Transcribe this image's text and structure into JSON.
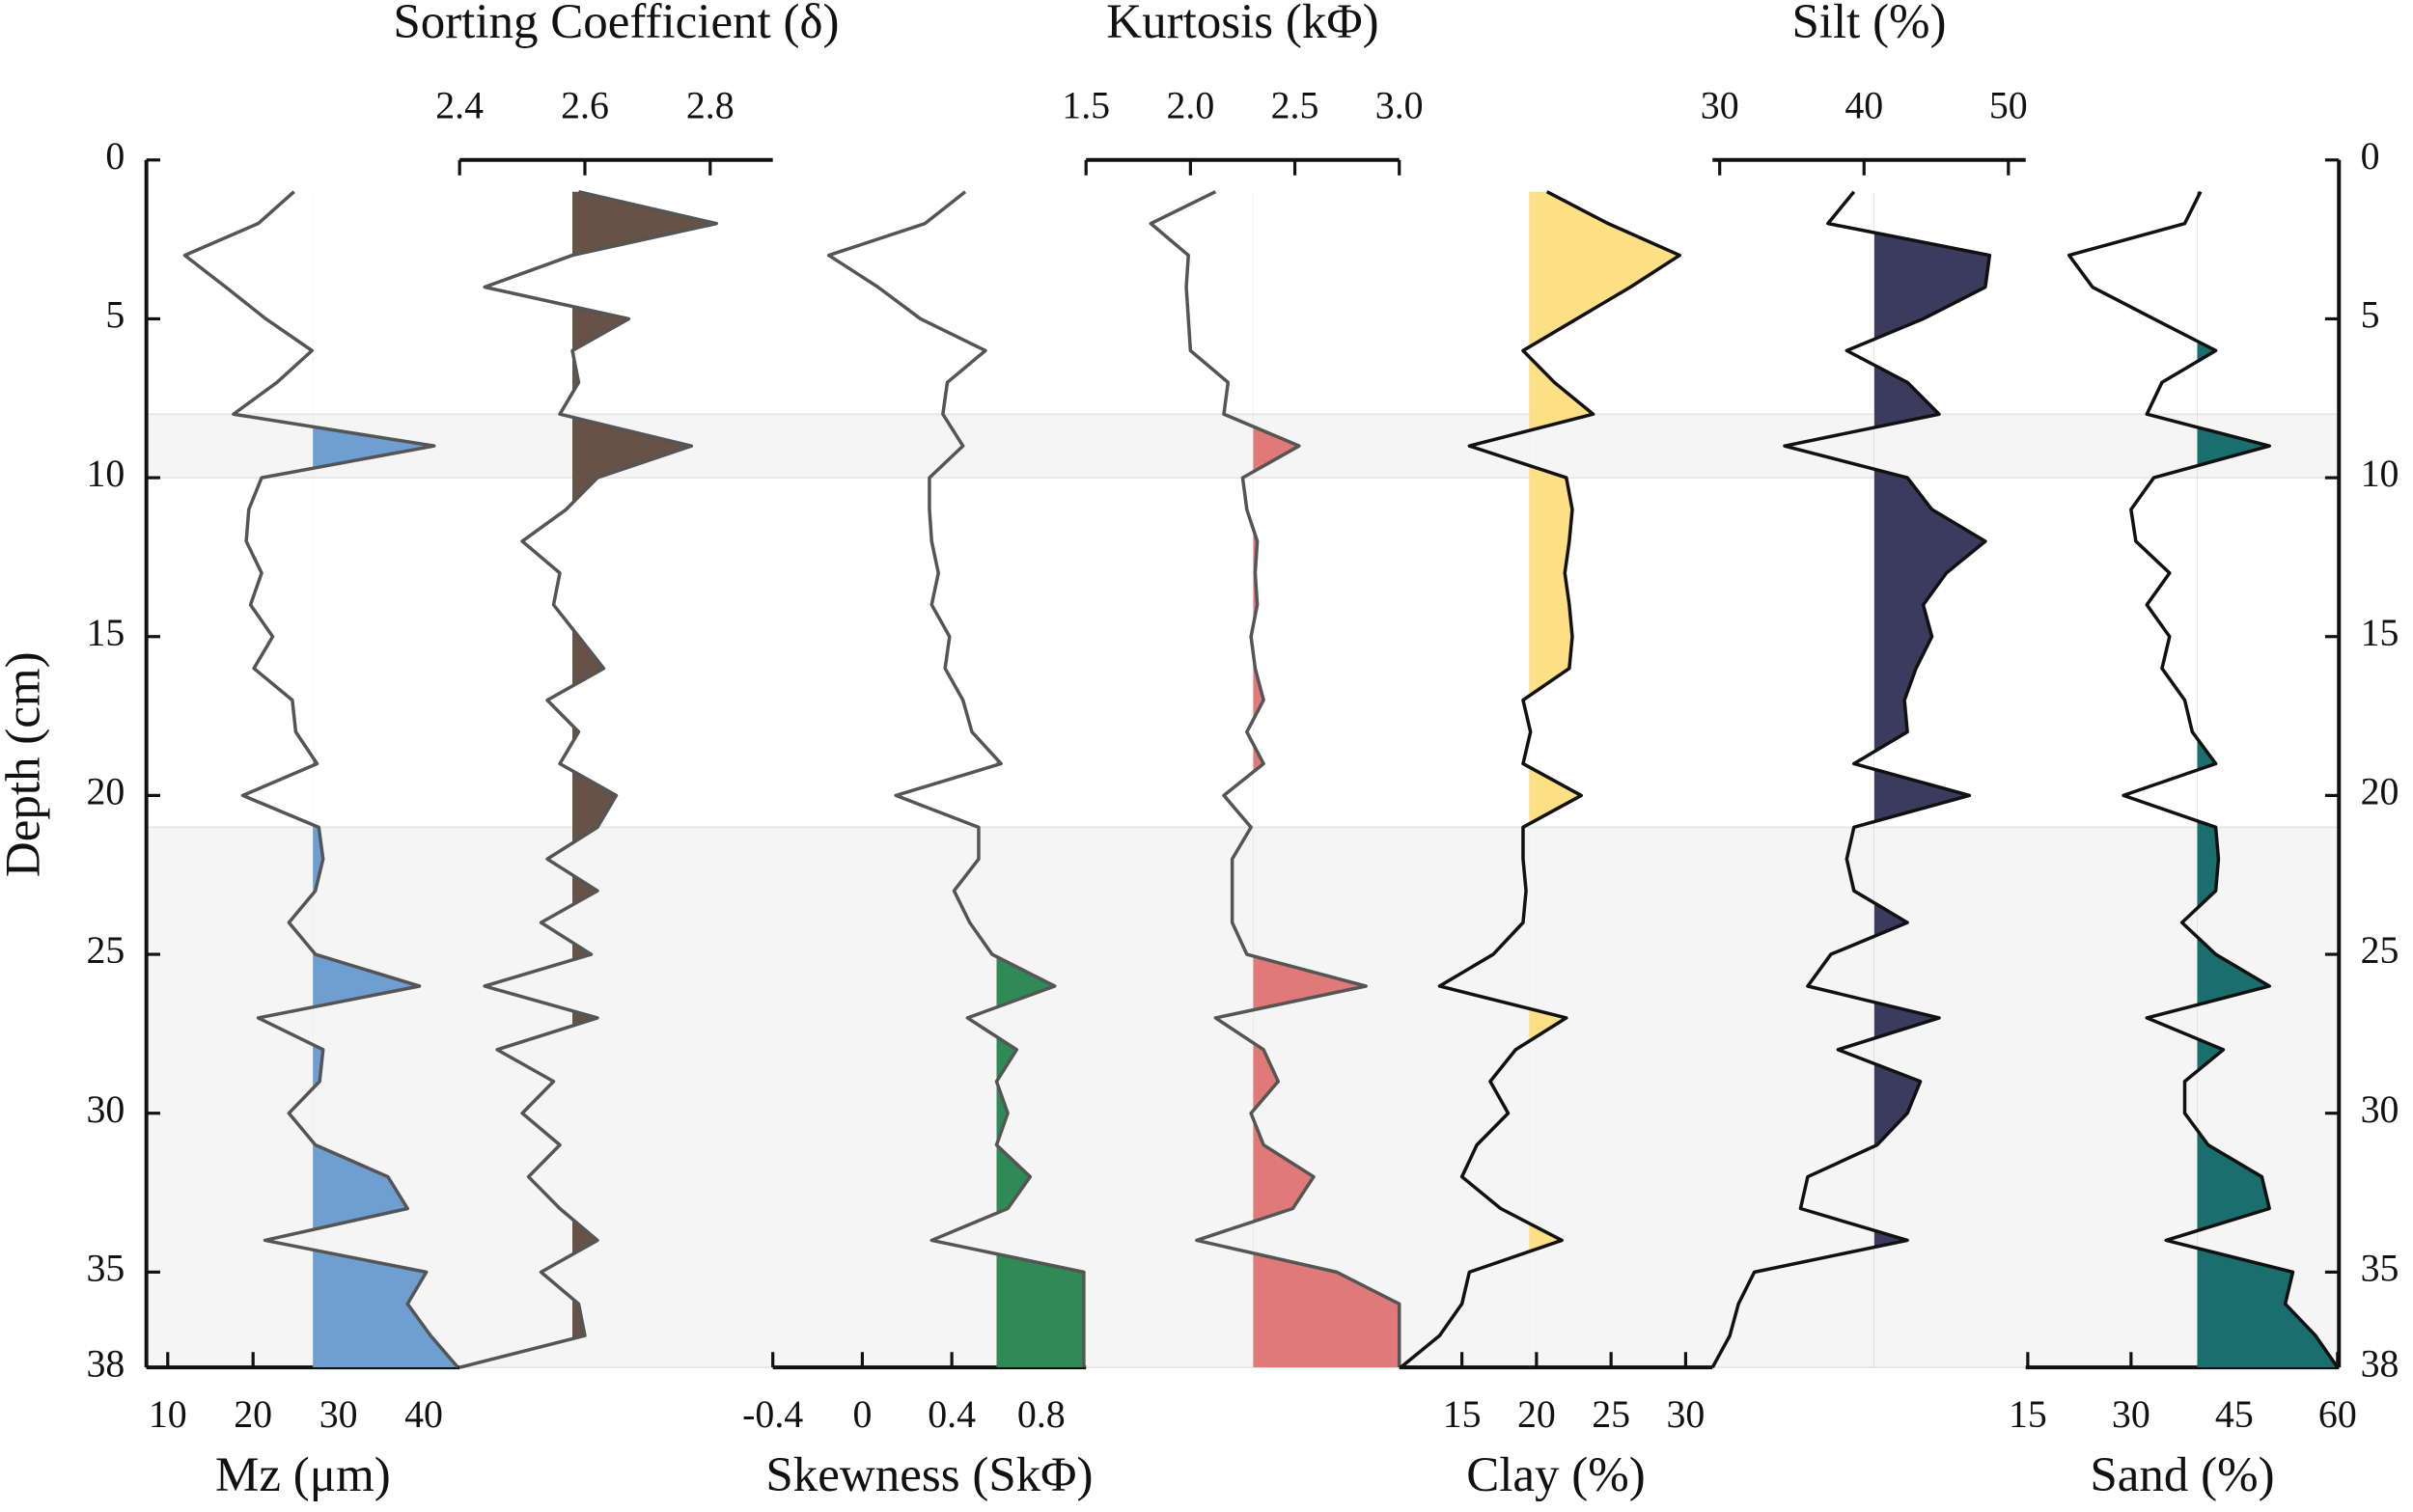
{
  "chart_data": {
    "type": "line",
    "y_label": "Depth (cm)",
    "ylim": [
      0,
      38
    ],
    "yticks": [
      0,
      5,
      10,
      15,
      20,
      25,
      30,
      35,
      38
    ],
    "shaded_depths": [
      [
        8,
        10
      ],
      [
        21,
        38
      ]
    ],
    "depth": [
      1,
      2,
      3,
      4,
      5,
      6,
      7,
      8,
      9,
      10,
      11,
      12,
      13,
      14,
      15,
      16,
      17,
      18,
      19,
      20,
      21,
      22,
      23,
      24,
      25,
      26,
      27,
      28,
      29,
      30,
      31,
      32,
      33,
      34,
      35,
      36,
      37,
      38
    ],
    "tracks": [
      {
        "label": "Mz (μm)",
        "axis": "bottom",
        "xlim": [
          7.5,
          44.2
        ],
        "xticks": [
          10,
          20,
          30,
          40
        ],
        "line_color": "#555555",
        "color": "#6f9fd0",
        "fill_baseline": 27,
        "values": [
          24.8,
          20.6,
          12,
          16.8,
          21.5,
          26.9,
          22.8,
          17.7,
          41.2,
          21,
          19.5,
          19.2,
          21,
          19.7,
          22.3,
          20.1,
          24.6,
          25,
          27.5,
          18.8,
          27.7,
          28.2,
          27.3,
          24.2,
          27.3,
          39.5,
          20.6,
          28.2,
          27.8,
          24.2,
          27.3,
          35.8,
          38.1,
          21.4,
          40.3,
          38.1,
          40.8,
          44
        ]
      },
      {
        "label": "Sorting Coefficient (δ)",
        "axis": "top",
        "xlim": [
          2.4,
          2.9
        ],
        "xticks": [
          2.4,
          2.6,
          2.8
        ],
        "line_color": "#555555",
        "color": "#665247",
        "fill_baseline": 2.58,
        "values": [
          2.59,
          2.81,
          2.58,
          2.44,
          2.67,
          2.58,
          2.59,
          2.56,
          2.77,
          2.62,
          2.57,
          2.5,
          2.56,
          2.55,
          2.59,
          2.63,
          2.54,
          2.59,
          2.56,
          2.65,
          2.62,
          2.54,
          2.62,
          2.53,
          2.61,
          2.44,
          2.62,
          2.46,
          2.55,
          2.5,
          2.56,
          2.51,
          2.56,
          2.62,
          2.53,
          2.59,
          2.6,
          2.4
        ]
      },
      {
        "label": "Skewness (SkΦ)",
        "axis": "bottom",
        "xlim": [
          -0.4,
          1.0
        ],
        "xticks": [
          -0.4,
          0,
          0.4,
          0.8
        ],
        "line_color": "#555555",
        "color": "#2f8a55",
        "fill_baseline": 0.6,
        "values": [
          0.46,
          0.28,
          -0.15,
          0.07,
          0.26,
          0.55,
          0.38,
          0.36,
          0.45,
          0.3,
          0.3,
          0.31,
          0.34,
          0.31,
          0.39,
          0.37,
          0.45,
          0.49,
          0.62,
          0.15,
          0.52,
          0.52,
          0.41,
          0.48,
          0.58,
          0.86,
          0.47,
          0.69,
          0.6,
          0.65,
          0.6,
          0.75,
          0.65,
          0.31,
          0.99,
          0.99,
          0.99,
          0.99
        ]
      },
      {
        "label": "Kurtosis (kΦ)",
        "axis": "top",
        "xlim": [
          1.5,
          3.0
        ],
        "xticks": [
          1.5,
          {
            "value": 2,
            "label": "2.0"
          },
          2.5,
          {
            "value": 3,
            "label": "3.0"
          }
        ],
        "line_color": "#555555",
        "color": "#e07a78",
        "fill_baseline": 2.3,
        "values": [
          2.12,
          1.81,
          1.99,
          1.98,
          1.99,
          2.0,
          2.18,
          2.16,
          2.52,
          2.25,
          2.27,
          2.32,
          2.31,
          2.32,
          2.29,
          2.31,
          2.35,
          2.27,
          2.35,
          2.16,
          2.29,
          2.2,
          2.2,
          2.2,
          2.27,
          2.84,
          2.12,
          2.35,
          2.42,
          2.29,
          2.35,
          2.59,
          2.49,
          2.03,
          2.7,
          3.0,
          3.0,
          3.0
        ]
      },
      {
        "label": "Clay (%)",
        "axis": "bottom",
        "xlim": [
          10.8,
          31.8
        ],
        "xticks": [
          15,
          20,
          25,
          30
        ],
        "line_color": "#111111",
        "color": "#fddf86",
        "fill_baseline": 19.5,
        "values": [
          20.7,
          24.8,
          29.6,
          26.3,
          22.7,
          19.1,
          21.2,
          23.8,
          15.5,
          22,
          22.4,
          22.2,
          21.9,
          22.2,
          22.4,
          22.2,
          19.1,
          19.6,
          19.1,
          23,
          19.1,
          19.1,
          19.3,
          19.1,
          17.1,
          13.5,
          22,
          18.6,
          16.9,
          18.1,
          16,
          15,
          17.6,
          21.7,
          15.5,
          15,
          13.5,
          10.9
        ]
      },
      {
        "label": "Silt (%)",
        "axis": "top",
        "xlim": [
          29.5,
          51.2
        ],
        "xticks": [
          30,
          40,
          50
        ],
        "line_color": "#111111",
        "color": "#3b3b5e",
        "fill_baseline": 40.7,
        "values": [
          39.3,
          37.5,
          48.7,
          48.4,
          44.1,
          38.8,
          43,
          45.2,
          34.5,
          43,
          44.7,
          48.4,
          45.7,
          44.1,
          44.7,
          43.6,
          42.8,
          43,
          39.3,
          47.3,
          39.3,
          38.8,
          39.3,
          43,
          37.7,
          36.1,
          45.2,
          38.2,
          43.9,
          43,
          40.9,
          36.1,
          35.6,
          43,
          32.4,
          31.3,
          30.7,
          29.5
        ]
      },
      {
        "label": "Sand (%)",
        "axis": "bottom",
        "xlim": [
          14.7,
          60.2
        ],
        "xticks": [
          15,
          30,
          45,
          60
        ],
        "line_color": "#111111",
        "color": "#1a6e6e",
        "fill_baseline": 39.6,
        "values": [
          40.1,
          37.8,
          21,
          24.4,
          33.3,
          42.3,
          34.5,
          32.3,
          50.1,
          33.3,
          30,
          30.7,
          35.6,
          32.3,
          35.6,
          34.5,
          37.8,
          38.9,
          42.3,
          28.9,
          42.3,
          42.7,
          42.3,
          37.4,
          42.3,
          50.1,
          32.3,
          43.4,
          37.8,
          37.8,
          41.2,
          49,
          50.1,
          35.1,
          53.5,
          52.4,
          56.8,
          60
        ]
      }
    ]
  }
}
